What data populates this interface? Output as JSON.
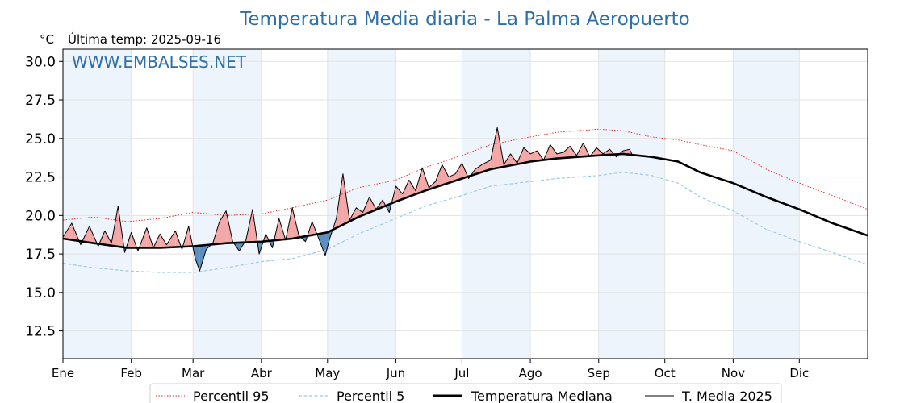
{
  "chart_data": {
    "type": "line",
    "title": "Temperatura Media diaria - La Palma Aeropuerto",
    "unit_label": "°C",
    "subtitle": "Última temp: 2025-09-16",
    "watermark": "WWW.EMBALSES.NET",
    "ylim": [
      10.7,
      30.8
    ],
    "xlim": [
      1,
      366
    ],
    "grid": true,
    "legend_position": "bottom",
    "y_ticks": [
      {
        "value": 12.5,
        "label": "12.5"
      },
      {
        "value": 15.0,
        "label": "15.0"
      },
      {
        "value": 17.5,
        "label": "17.5"
      },
      {
        "value": 20.0,
        "label": "20.0"
      },
      {
        "value": 22.5,
        "label": "22.5"
      },
      {
        "value": 25.0,
        "label": "25.0"
      },
      {
        "value": 27.5,
        "label": "27.5"
      },
      {
        "value": 30.0,
        "label": "30.0"
      }
    ],
    "x_ticks": [
      {
        "day": 1,
        "label": "Ene"
      },
      {
        "day": 32,
        "label": "Feb"
      },
      {
        "day": 60,
        "label": "Mar"
      },
      {
        "day": 91,
        "label": "Abr"
      },
      {
        "day": 121,
        "label": "May"
      },
      {
        "day": 152,
        "label": "Jun"
      },
      {
        "day": 182,
        "label": "Jul"
      },
      {
        "day": 213,
        "label": "Ago"
      },
      {
        "day": 244,
        "label": "Sep"
      },
      {
        "day": 274,
        "label": "Oct"
      },
      {
        "day": 305,
        "label": "Nov"
      },
      {
        "day": 335,
        "label": "Dic"
      }
    ],
    "shaded_month_bands": [
      [
        1,
        32
      ],
      [
        60,
        91
      ],
      [
        121,
        152
      ],
      [
        182,
        213
      ],
      [
        244,
        274
      ],
      [
        305,
        335
      ]
    ],
    "colors": {
      "title": "#2e6fa7",
      "band": "#eef4fb",
      "grid": "#e3e3e3",
      "p95": "#e41a1c",
      "p5": "#9ecae1",
      "median": "#000000",
      "current": "#000000",
      "above_fill": "#f4a7a7",
      "below_fill": "#5b8fc0"
    },
    "series": [
      {
        "name": "Percentil 95",
        "style": "dotted",
        "points": [
          [
            1,
            19.7
          ],
          [
            15,
            19.9
          ],
          [
            30,
            19.6
          ],
          [
            45,
            19.8
          ],
          [
            60,
            20.2
          ],
          [
            75,
            20.0
          ],
          [
            91,
            20.1
          ],
          [
            105,
            20.5
          ],
          [
            121,
            21.0
          ],
          [
            135,
            21.8
          ],
          [
            152,
            22.3
          ],
          [
            165,
            23.1
          ],
          [
            182,
            23.9
          ],
          [
            195,
            24.6
          ],
          [
            213,
            25.1
          ],
          [
            225,
            25.4
          ],
          [
            244,
            25.6
          ],
          [
            255,
            25.5
          ],
          [
            268,
            25.1
          ],
          [
            280,
            24.9
          ],
          [
            290,
            24.6
          ],
          [
            305,
            24.2
          ],
          [
            320,
            23.0
          ],
          [
            335,
            22.1
          ],
          [
            350,
            21.3
          ],
          [
            366,
            20.4
          ]
        ]
      },
      {
        "name": "Percentil 5",
        "style": "dashed",
        "points": [
          [
            1,
            16.9
          ],
          [
            15,
            16.6
          ],
          [
            30,
            16.4
          ],
          [
            45,
            16.3
          ],
          [
            60,
            16.3
          ],
          [
            75,
            16.6
          ],
          [
            91,
            17.0
          ],
          [
            105,
            17.2
          ],
          [
            121,
            17.8
          ],
          [
            135,
            18.8
          ],
          [
            152,
            19.8
          ],
          [
            165,
            20.6
          ],
          [
            182,
            21.3
          ],
          [
            195,
            21.9
          ],
          [
            213,
            22.2
          ],
          [
            225,
            22.4
          ],
          [
            244,
            22.6
          ],
          [
            255,
            22.8
          ],
          [
            268,
            22.6
          ],
          [
            280,
            22.1
          ],
          [
            290,
            21.2
          ],
          [
            305,
            20.3
          ],
          [
            320,
            19.1
          ],
          [
            335,
            18.3
          ],
          [
            350,
            17.6
          ],
          [
            366,
            16.8
          ]
        ]
      },
      {
        "name": "Temperatura Mediana",
        "style": "solid-thick",
        "points": [
          [
            1,
            18.5
          ],
          [
            15,
            18.2
          ],
          [
            30,
            17.9
          ],
          [
            45,
            17.9
          ],
          [
            60,
            18.0
          ],
          [
            75,
            18.2
          ],
          [
            91,
            18.3
          ],
          [
            105,
            18.5
          ],
          [
            121,
            18.9
          ],
          [
            135,
            19.9
          ],
          [
            152,
            20.9
          ],
          [
            165,
            21.6
          ],
          [
            182,
            22.4
          ],
          [
            195,
            23.0
          ],
          [
            213,
            23.5
          ],
          [
            225,
            23.7
          ],
          [
            244,
            23.9
          ],
          [
            255,
            24.0
          ],
          [
            268,
            23.8
          ],
          [
            280,
            23.5
          ],
          [
            290,
            22.8
          ],
          [
            305,
            22.1
          ],
          [
            320,
            21.2
          ],
          [
            335,
            20.4
          ],
          [
            350,
            19.5
          ],
          [
            366,
            18.7
          ]
        ]
      },
      {
        "name": "T. Media 2025",
        "style": "solid-thin",
        "points": [
          [
            1,
            18.6
          ],
          [
            5,
            19.5
          ],
          [
            9,
            18.1
          ],
          [
            13,
            19.3
          ],
          [
            17,
            18.0
          ],
          [
            20,
            19.0
          ],
          [
            23,
            18.2
          ],
          [
            26,
            20.6
          ],
          [
            29,
            17.6
          ],
          [
            32,
            18.9
          ],
          [
            35,
            17.7
          ],
          [
            39,
            19.2
          ],
          [
            42,
            17.9
          ],
          [
            45,
            18.8
          ],
          [
            48,
            18.1
          ],
          [
            52,
            19.0
          ],
          [
            55,
            17.8
          ],
          [
            58,
            19.3
          ],
          [
            61,
            17.2
          ],
          [
            63,
            16.4
          ],
          [
            66,
            17.8
          ],
          [
            69,
            18.2
          ],
          [
            72,
            19.6
          ],
          [
            75,
            20.3
          ],
          [
            78,
            18.3
          ],
          [
            81,
            17.7
          ],
          [
            84,
            18.4
          ],
          [
            87,
            20.4
          ],
          [
            90,
            17.5
          ],
          [
            93,
            18.8
          ],
          [
            96,
            17.9
          ],
          [
            99,
            19.8
          ],
          [
            102,
            18.4
          ],
          [
            105,
            20.5
          ],
          [
            108,
            18.7
          ],
          [
            111,
            18.3
          ],
          [
            114,
            19.6
          ],
          [
            117,
            18.5
          ],
          [
            120,
            17.4
          ],
          [
            122,
            18.5
          ],
          [
            125,
            19.8
          ],
          [
            128,
            22.7
          ],
          [
            131,
            19.7
          ],
          [
            134,
            20.5
          ],
          [
            137,
            20.2
          ],
          [
            140,
            21.2
          ],
          [
            143,
            20.4
          ],
          [
            146,
            21.0
          ],
          [
            149,
            20.2
          ],
          [
            152,
            21.9
          ],
          [
            155,
            21.4
          ],
          [
            158,
            22.3
          ],
          [
            161,
            21.6
          ],
          [
            164,
            23.1
          ],
          [
            167,
            21.8
          ],
          [
            170,
            22.2
          ],
          [
            173,
            23.3
          ],
          [
            176,
            22.5
          ],
          [
            179,
            22.7
          ],
          [
            182,
            23.4
          ],
          [
            185,
            22.4
          ],
          [
            188,
            23.0
          ],
          [
            191,
            23.3
          ],
          [
            195,
            23.6
          ],
          [
            198,
            25.7
          ],
          [
            201,
            23.3
          ],
          [
            204,
            24.0
          ],
          [
            207,
            23.4
          ],
          [
            210,
            24.4
          ],
          [
            213,
            24.0
          ],
          [
            216,
            24.2
          ],
          [
            219,
            23.6
          ],
          [
            222,
            24.6
          ],
          [
            225,
            24.0
          ],
          [
            228,
            24.1
          ],
          [
            231,
            24.5
          ],
          [
            234,
            23.9
          ],
          [
            237,
            24.7
          ],
          [
            240,
            23.8
          ],
          [
            243,
            24.4
          ],
          [
            246,
            24.0
          ],
          [
            249,
            24.3
          ],
          [
            252,
            23.8
          ],
          [
            255,
            24.2
          ],
          [
            258,
            24.3
          ],
          [
            259,
            24.0
          ]
        ]
      }
    ]
  },
  "legend": [
    {
      "label": "Percentil 95",
      "style": "dotted-red"
    },
    {
      "label": "Percentil 5",
      "style": "dashed-lightblue"
    },
    {
      "label": "Temperatura Mediana",
      "style": "thick-black"
    },
    {
      "label": "T. Media 2025",
      "style": "thin-black"
    }
  ]
}
